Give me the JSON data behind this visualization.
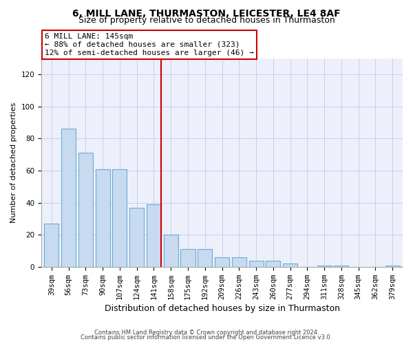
{
  "title1": "6, MILL LANE, THURMASTON, LEICESTER, LE4 8AF",
  "title2": "Size of property relative to detached houses in Thurmaston",
  "xlabel": "Distribution of detached houses by size in Thurmaston",
  "ylabel": "Number of detached properties",
  "footnote1": "Contains HM Land Registry data © Crown copyright and database right 2024.",
  "footnote2": "Contains public sector information licensed under the Open Government Licence v3.0.",
  "categories": [
    "39sqm",
    "56sqm",
    "73sqm",
    "90sqm",
    "107sqm",
    "124sqm",
    "141sqm",
    "158sqm",
    "175sqm",
    "192sqm",
    "209sqm",
    "226sqm",
    "243sqm",
    "260sqm",
    "277sqm",
    "294sqm",
    "311sqm",
    "328sqm",
    "345sqm",
    "362sqm",
    "379sqm"
  ],
  "values": [
    27,
    86,
    71,
    61,
    61,
    37,
    39,
    20,
    11,
    11,
    6,
    6,
    4,
    4,
    2,
    0,
    1,
    1,
    0,
    0,
    1
  ],
  "bar_color": "#c8daf0",
  "bar_edge_color": "#6aaad4",
  "vline_color": "#cc0000",
  "annotation_line1": "6 MILL LANE: 145sqm",
  "annotation_line2": "← 88% of detached houses are smaller (323)",
  "annotation_line3": "12% of semi-detached houses are larger (46) →",
  "annotation_box_color": "#cc0000",
  "ylim": [
    0,
    130
  ],
  "yticks": [
    0,
    20,
    40,
    60,
    80,
    100,
    120
  ],
  "grid_color": "#c8d0e8",
  "bg_color": "#edf0fb",
  "title1_fontsize": 10,
  "title2_fontsize": 9,
  "xlabel_fontsize": 9,
  "ylabel_fontsize": 8,
  "tick_fontsize": 7.5,
  "footnote_fontsize": 6,
  "annot_fontsize": 8
}
